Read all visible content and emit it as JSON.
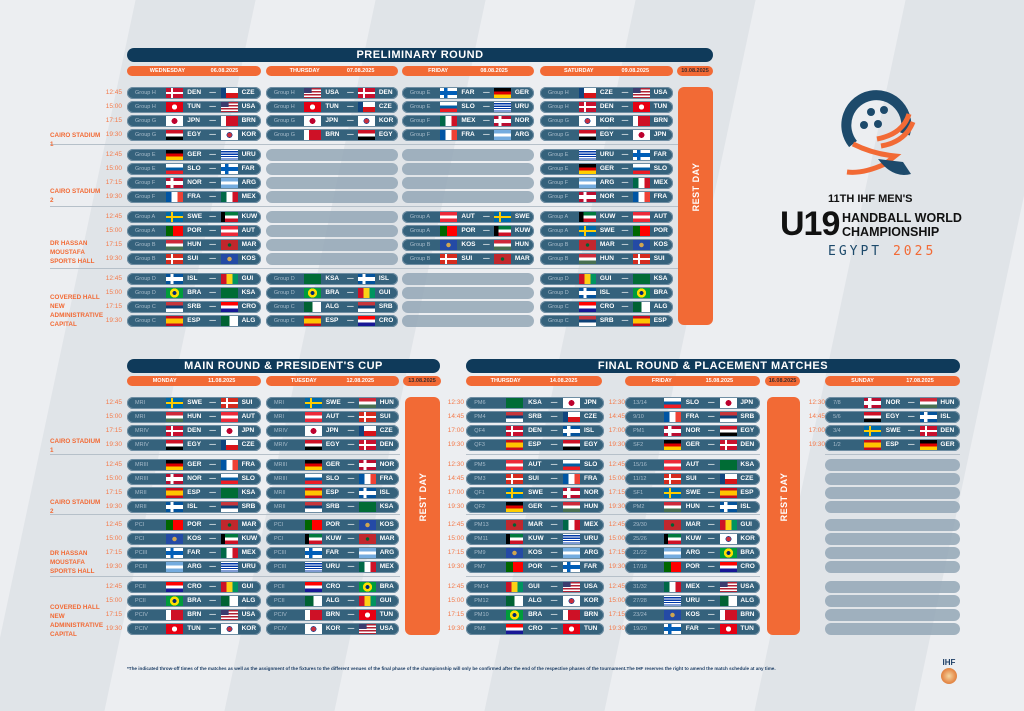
{
  "logo": {
    "edition": "11TH IHF MEN'S",
    "u19": "U19",
    "line1": "HANDBALL WORLD",
    "line2": "CHAMPIONSHIP",
    "country": "EGYPT",
    "year": "2025",
    "ihf_mark": "IHF"
  },
  "colors": {
    "navy": "#0f3a5a",
    "pill": "#35627c",
    "orange": "#f26a35"
  },
  "venues": [
    "CAIRO STADIUM 1",
    "CAIRO STADIUM 2",
    "DR HASSAN MOUSTAFA SPORTS HALL",
    "COVERED HALL NEW ADMINISTRATIVE CAPITAL"
  ],
  "rest_day": "REST DAY",
  "footnote": "*The indicated throw-off times of the matches as well as the assignment of the fixtures to the different venues of the final  phase of the championship will only be confirmed after the end of the respective phases of the tournament.The IHF reserves the right to amend the match schedule at any time.",
  "sections": [
    {
      "title": "PRELIMINARY ROUND",
      "headers": [
        {
          "day": "WEDNESDAY",
          "date": "06.08.2025"
        },
        {
          "day": "THURSDAY",
          "date": "07.08.2025"
        },
        {
          "day": "FRIDAY",
          "date": "08.08.2025"
        },
        {
          "day": "SATURDAY",
          "date": "09.08.2025"
        },
        {
          "day": "",
          "date": "10.08.2025"
        }
      ],
      "times": [
        "12:45",
        "15:00",
        "17:15",
        "19:30",
        "12:45",
        "15:00",
        "17:15",
        "19:30",
        "12:45",
        "15:00",
        "17:15",
        "19:30",
        "12:45",
        "15:00",
        "17:15",
        "19:30"
      ],
      "columns": [
        {
          "matches": [
            [
              "Group H",
              "DEN",
              "CZE"
            ],
            [
              "Group H",
              "TUN",
              "USA"
            ],
            [
              "Group G",
              "JPN",
              "BRN"
            ],
            [
              "Group G",
              "EGY",
              "KOR"
            ],
            [
              "Group E",
              "GER",
              "URU"
            ],
            [
              "Group E",
              "SLO",
              "FAR"
            ],
            [
              "Group F",
              "NOR",
              "ARG"
            ],
            [
              "Group F",
              "FRA",
              "MEX"
            ],
            [
              "Group A",
              "SWE",
              "KUW"
            ],
            [
              "Group A",
              "POR",
              "AUT"
            ],
            [
              "Group B",
              "HUN",
              "MAR"
            ],
            [
              "Group B",
              "SUI",
              "KOS"
            ],
            [
              "Group D",
              "ISL",
              "GUI"
            ],
            [
              "Group D",
              "BRA",
              "KSA"
            ],
            [
              "Group C",
              "SRB",
              "CRO"
            ],
            [
              "Group C",
              "ESP",
              "ALG"
            ]
          ]
        },
        {
          "matches": [
            [
              "Group H",
              "USA",
              "DEN"
            ],
            [
              "Group H",
              "TUN",
              "CZE"
            ],
            [
              "Group G",
              "JPN",
              "KOR"
            ],
            [
              "Group G",
              "BRN",
              "EGY"
            ],
            null,
            null,
            null,
            null,
            null,
            null,
            null,
            null,
            [
              "Group D",
              "KSA",
              "ISL"
            ],
            [
              "Group D",
              "BRA",
              "GUI"
            ],
            [
              "Group C",
              "ALG",
              "SRB"
            ],
            [
              "Group C",
              "ESP",
              "CRO"
            ]
          ]
        },
        {
          "matches": [
            [
              "Group E",
              "FAR",
              "GER"
            ],
            [
              "Group E",
              "SLO",
              "URU"
            ],
            [
              "Group F",
              "MEX",
              "NOR"
            ],
            [
              "Group F",
              "FRA",
              "ARG"
            ],
            null,
            null,
            null,
            null,
            [
              "Group A",
              "AUT",
              "SWE"
            ],
            [
              "Group A",
              "POR",
              "KUW"
            ],
            [
              "Group B",
              "KOS",
              "HUN"
            ],
            [
              "Group B",
              "SUI",
              "MAR"
            ],
            null,
            null,
            null,
            null
          ]
        },
        {
          "matches": [
            [
              "Group H",
              "CZE",
              "USA"
            ],
            [
              "Group H",
              "DEN",
              "TUN"
            ],
            [
              "Group G",
              "KOR",
              "BRN"
            ],
            [
              "Group G",
              "EGY",
              "JPN"
            ],
            [
              "Group E",
              "URU",
              "FAR"
            ],
            [
              "Group E",
              "GER",
              "SLO"
            ],
            [
              "Group F",
              "ARG",
              "MEX"
            ],
            [
              "Group F",
              "NOR",
              "FRA"
            ],
            [
              "Group A",
              "KUW",
              "AUT"
            ],
            [
              "Group A",
              "SWE",
              "POR"
            ],
            [
              "Group B",
              "MAR",
              "KOS"
            ],
            [
              "Group B",
              "HUN",
              "SUI"
            ],
            [
              "Group D",
              "GUI",
              "KSA"
            ],
            [
              "Group D",
              "ISL",
              "BRA"
            ],
            [
              "Group C",
              "CRO",
              "ALG"
            ],
            [
              "Group C",
              "SRB",
              "ESP"
            ]
          ]
        }
      ]
    },
    {
      "title": "MAIN ROUND & PRESIDENT'S CUP",
      "headers": [
        {
          "day": "MONDAY",
          "date": "11.08.2025"
        },
        {
          "day": "TUESDAY",
          "date": "12.08.2025"
        },
        {
          "day": "",
          "date": "13.08.2025"
        }
      ],
      "times": [
        "12:45",
        "15:00",
        "17:15",
        "19:30",
        "12:45",
        "15:00",
        "17:15",
        "19:30",
        "12:45",
        "15:00",
        "17:15",
        "19:30",
        "12:45",
        "15:00",
        "17:15",
        "19:30"
      ],
      "columns": [
        {
          "matches": [
            [
              "MRI",
              "SWE",
              "SUI"
            ],
            [
              "MRI",
              "HUN",
              "AUT"
            ],
            [
              "MRIV",
              "DEN",
              "JPN"
            ],
            [
              "MRIV",
              "EGY",
              "CZE"
            ],
            [
              "MRIII",
              "GER",
              "FRA"
            ],
            [
              "MRIII",
              "NOR",
              "SLO"
            ],
            [
              "MRII",
              "ESP",
              "KSA"
            ],
            [
              "MRII",
              "ISL",
              "SRB"
            ],
            [
              "PCI",
              "POR",
              "MAR"
            ],
            [
              "PCI",
              "KOS",
              "KUW"
            ],
            [
              "PCIII",
              "FAR",
              "MEX"
            ],
            [
              "PCIII",
              "ARG",
              "URU"
            ],
            [
              "PCII",
              "CRO",
              "GUI"
            ],
            [
              "PCII",
              "BRA",
              "ALG"
            ],
            [
              "PCIV",
              "BRN",
              "USA"
            ],
            [
              "PCIV",
              "TUN",
              "KOR"
            ]
          ]
        },
        {
          "matches": [
            [
              "MRI",
              "SWE",
              "HUN"
            ],
            [
              "MRI",
              "AUT",
              "SUI"
            ],
            [
              "MRIV",
              "JPN",
              "CZE"
            ],
            [
              "MRIV",
              "EGY",
              "DEN"
            ],
            [
              "MRIII",
              "GER",
              "NOR"
            ],
            [
              "MRIII",
              "SLO",
              "FRA"
            ],
            [
              "MRII",
              "ESP",
              "ISL"
            ],
            [
              "MRII",
              "SRB",
              "KSA"
            ],
            [
              "PCI",
              "POR",
              "KOS"
            ],
            [
              "PCI",
              "KUW",
              "MAR"
            ],
            [
              "PCIII",
              "FAR",
              "ARG"
            ],
            [
              "PCIII",
              "URU",
              "MEX"
            ],
            [
              "PCII",
              "CRO",
              "BRA"
            ],
            [
              "PCII",
              "ALG",
              "GUI"
            ],
            [
              "PCIV",
              "BRN",
              "TUN"
            ],
            [
              "PCIV",
              "KOR",
              "USA"
            ]
          ]
        }
      ]
    },
    {
      "title": "FINAL ROUND & PLACEMENT MATCHES",
      "headers": [
        {
          "day": "THURSDAY",
          "date": "14.08.2025"
        },
        {
          "day": "FRIDAY",
          "date": "15.08.2025"
        },
        {
          "day": "",
          "date": "16.08.2025"
        },
        {
          "day": "SUNDAY",
          "date": "17.08.2025"
        }
      ],
      "columns": [
        {
          "times": [
            "12:30",
            "14:45",
            "17:00",
            "19:30",
            "12:30",
            "14:45",
            "17:00",
            "19:30",
            "12:45",
            "15:00",
            "17:15",
            "19:30",
            "12:45",
            "15:00",
            "17:15",
            "19:30"
          ],
          "matches": [
            [
              "PM6",
              "KSA",
              "JPN"
            ],
            [
              "PM4",
              "SRB",
              "CZE"
            ],
            [
              "QF4",
              "DEN",
              "ISL"
            ],
            [
              "QF3",
              "ESP",
              "EGY"
            ],
            [
              "PM5",
              "AUT",
              "SLO"
            ],
            [
              "PM3",
              "SUI",
              "FRA"
            ],
            [
              "QF1",
              "SWE",
              "NOR"
            ],
            [
              "QF2",
              "GER",
              "HUN"
            ],
            [
              "PM13",
              "MAR",
              "MEX"
            ],
            [
              "PM11",
              "KUW",
              "URU"
            ],
            [
              "PM9",
              "KOS",
              "ARG"
            ],
            [
              "PM7",
              "POR",
              "FAR"
            ],
            [
              "PM14",
              "GUI",
              "USA"
            ],
            [
              "PM12",
              "ALG",
              "KOR"
            ],
            [
              "PM10",
              "BRA",
              "BRN"
            ],
            [
              "PM8",
              "CRO",
              "TUN"
            ]
          ]
        },
        {
          "times": [
            "12:30",
            "14:45",
            "17:00",
            "19:30",
            "12:45",
            "15:00",
            "17:15",
            "19:30",
            "12:45",
            "15:00",
            "17:15",
            "19:30",
            "12:45",
            "15:00",
            "17:15",
            "19:30"
          ],
          "matches": [
            [
              "13/14",
              "SLO",
              "JPN"
            ],
            [
              "9/10",
              "FRA",
              "SRB"
            ],
            [
              "PM1",
              "NOR",
              "EGY"
            ],
            [
              "SF2",
              "GER",
              "DEN"
            ],
            [
              "15/16",
              "AUT",
              "KSA"
            ],
            [
              "11/12",
              "SUI",
              "CZE"
            ],
            [
              "SF1",
              "SWE",
              "ESP"
            ],
            [
              "PM2",
              "HUN",
              "ISL"
            ],
            [
              "29/30",
              "MAR",
              "GUI"
            ],
            [
              "25/26",
              "KUW",
              "KOR"
            ],
            [
              "21/22",
              "ARG",
              "BRA"
            ],
            [
              "17/18",
              "POR",
              "CRO"
            ],
            [
              "31/32",
              "MEX",
              "USA"
            ],
            [
              "27/28",
              "URU",
              "ALG"
            ],
            [
              "23/24",
              "KOS",
              "BRN"
            ],
            [
              "19/20",
              "FAR",
              "TUN"
            ]
          ]
        },
        {
          "times": [
            "12:30",
            "14:45",
            "17:00",
            "19:30"
          ],
          "matches": [
            [
              "7/8",
              "NOR",
              "HUN"
            ],
            [
              "5/6",
              "EGY",
              "ISL"
            ],
            [
              "3/4",
              "SWE",
              "DEN"
            ],
            [
              "1/2",
              "ESP",
              "GER"
            ],
            null,
            null,
            null,
            null,
            null,
            null,
            null,
            null,
            null,
            null,
            null,
            null
          ]
        }
      ]
    }
  ]
}
